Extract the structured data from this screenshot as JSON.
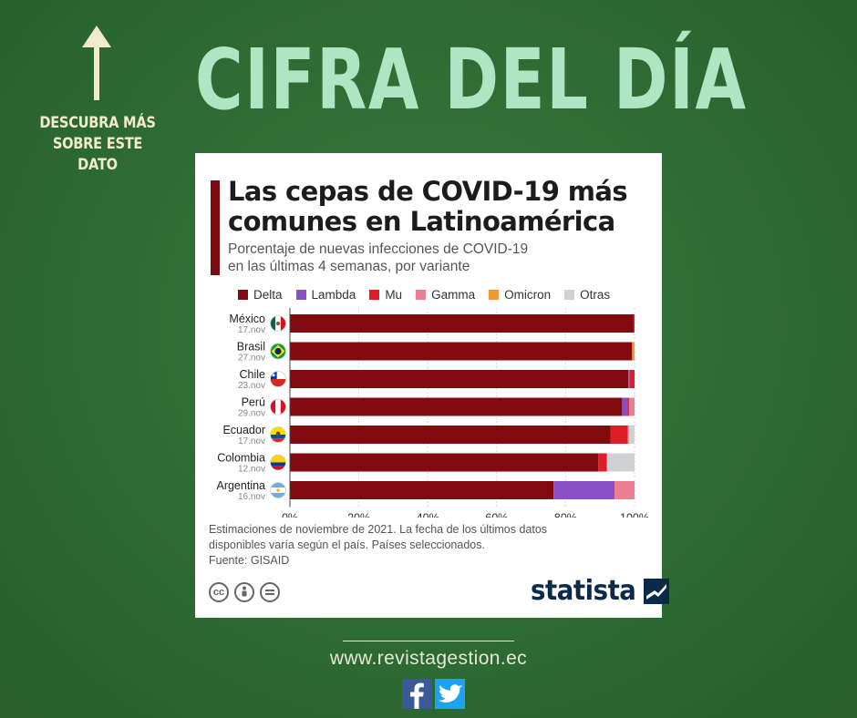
{
  "header": {
    "title": "CIFRA DEL DÍA",
    "side_note_line1": "DESCUBRA MÁS",
    "side_note_line2": "SOBRE ESTE DATO"
  },
  "card": {
    "footnote_line1": "Estimaciones de noviembre de 2021. La fecha de los últimos datos",
    "footnote_line2": "disponibles varía según el país. Países seleccionados.",
    "source": "Fuente: GISAID",
    "brand": "statista"
  },
  "footer": {
    "website": "www.revistagestion.ec"
  },
  "colors": {
    "background": "#2e6b33",
    "title": "#aee6c4",
    "delta": "#800a0e",
    "lambda": "#8a4fc4",
    "mu": "#dd1c26",
    "gamma": "#ec7f91",
    "omicron": "#f39634",
    "otras": "#cfd1d4"
  },
  "chart_data": {
    "type": "bar",
    "orientation": "horizontal",
    "stacked": true,
    "title": "Las cepas de COVID-19 más comunes en Latinoamérica",
    "subtitle_line1": "Porcentaje de nuevas infecciones de COVID-19",
    "subtitle_line2": "en las últimas 4 semanas, por variante",
    "categories": [
      "México",
      "Brasil",
      "Chile",
      "Perú",
      "Ecuador",
      "Colombia",
      "Argentina"
    ],
    "dates": [
      "17.nov",
      "27.nov",
      "23.nov",
      "29.nov",
      "17.nov",
      "12.nov",
      "16.nov"
    ],
    "flags": [
      "mexico",
      "brasil",
      "chile",
      "peru",
      "ecuador",
      "colombia",
      "argentina"
    ],
    "series": [
      {
        "name": "Delta",
        "color": "#800a0e",
        "values": [
          99.6,
          99.3,
          98.2,
          96.4,
          93.0,
          89.5,
          76.5
        ]
      },
      {
        "name": "Lambda",
        "color": "#8a4fc4",
        "values": [
          0.0,
          0.0,
          0.4,
          1.6,
          0.0,
          0.0,
          17.5
        ]
      },
      {
        "name": "Mu",
        "color": "#dd1c26",
        "values": [
          0.4,
          0.0,
          1.4,
          0.4,
          5.0,
          2.5,
          0.2
        ]
      },
      {
        "name": "Gamma",
        "color": "#ec7f91",
        "values": [
          0.0,
          0.0,
          0.0,
          1.6,
          0.4,
          0.0,
          5.8
        ]
      },
      {
        "name": "Omicron",
        "color": "#f39634",
        "values": [
          0.0,
          0.7,
          0.0,
          0.0,
          0.0,
          0.0,
          0.0
        ]
      },
      {
        "name": "Otras",
        "color": "#cfd1d4",
        "values": [
          0.0,
          0.0,
          0.0,
          0.0,
          1.6,
          8.0,
          0.0
        ]
      }
    ],
    "x_ticks": [
      "0%",
      "20%",
      "40%",
      "60%",
      "80%",
      "100%"
    ],
    "xlim": [
      0,
      100
    ],
    "legend_position": "top"
  }
}
